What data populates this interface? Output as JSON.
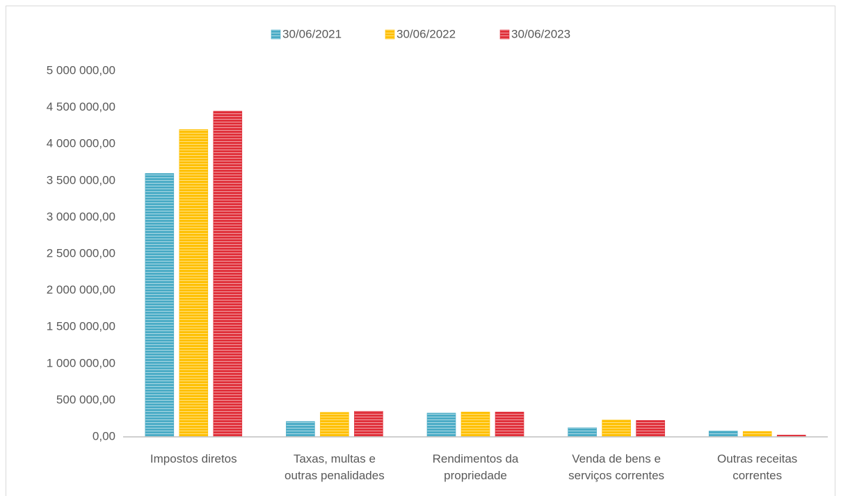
{
  "chart_data": {
    "type": "bar",
    "categories": [
      "Impostos diretos",
      "Taxas, multas e outras penalidades",
      "Rendimentos da propriedade",
      "Venda de bens e serviços correntes",
      "Outras receitas correntes"
    ],
    "series": [
      {
        "name": "30/06/2021",
        "color": "#4bacc6",
        "values": [
          3600000,
          210000,
          325000,
          125000,
          80000
        ]
      },
      {
        "name": "30/06/2022",
        "color": "#ffc000",
        "values": [
          4200000,
          335000,
          340000,
          230000,
          75000
        ]
      },
      {
        "name": "30/06/2023",
        "color": "#e0313b",
        "values": [
          4450000,
          350000,
          340000,
          225000,
          25000
        ]
      }
    ],
    "ylim": [
      0,
      5000000
    ],
    "yticks": [
      {
        "value": 0,
        "label": "0,00"
      },
      {
        "value": 500000,
        "label": "500 000,00"
      },
      {
        "value": 1000000,
        "label": "1 000 000,00"
      },
      {
        "value": 1500000,
        "label": "1 500 000,00"
      },
      {
        "value": 2000000,
        "label": "2 000 000,00"
      },
      {
        "value": 2500000,
        "label": "2 500 000,00"
      },
      {
        "value": 3000000,
        "label": "3 000 000,00"
      },
      {
        "value": 3500000,
        "label": "3 500 000,00"
      },
      {
        "value": 4000000,
        "label": "4 000 000,00"
      },
      {
        "value": 4500000,
        "label": "4 500 000,00"
      },
      {
        "value": 5000000,
        "label": "5 000 000,00"
      }
    ],
    "grid": false,
    "legend": "top"
  }
}
